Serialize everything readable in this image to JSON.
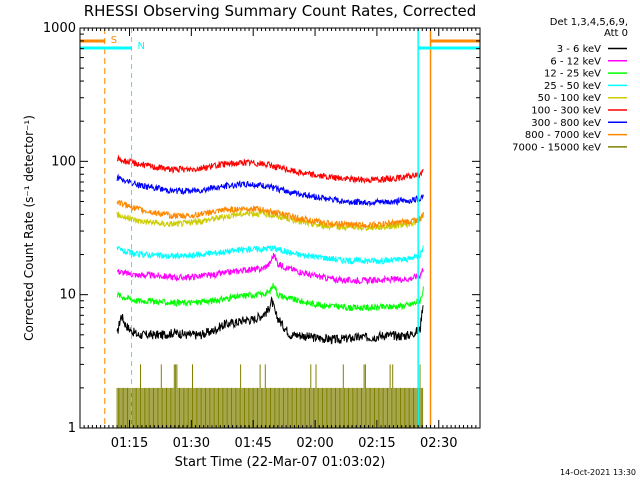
{
  "chart_data": {
    "type": "line",
    "title": "RHESSI Observing Summary Count Rates, Corrected",
    "xlabel": "Start Time (22-Mar-07 01:03:02)",
    "ylabel": "Corrected Count Rate (s⁻¹ detector⁻¹)",
    "yscale": "log",
    "ylim": [
      1,
      1000
    ],
    "xlim_minutes": [
      0,
      97
    ],
    "x_ticks": [
      {
        "label": "01:15",
        "minute": 12
      },
      {
        "label": "01:30",
        "minute": 27
      },
      {
        "label": "01:45",
        "minute": 42
      },
      {
        "label": "02:00",
        "minute": 57
      },
      {
        "label": "02:15",
        "minute": 72
      },
      {
        "label": "02:30",
        "minute": 87
      }
    ],
    "y_ticks": [
      {
        "label": "1",
        "value": 1
      },
      {
        "label": "10",
        "value": 10
      },
      {
        "label": "100",
        "value": 100
      },
      {
        "label": "1000",
        "value": 1000
      }
    ],
    "legend_header": [
      "Det 1,3,4,5,6,9,",
      "Att 0"
    ],
    "series": [
      {
        "name": "3 - 6 keV",
        "color": "#000000",
        "x": [
          9,
          10,
          11,
          12,
          14,
          17,
          20,
          23,
          26,
          29,
          32,
          35,
          38,
          40,
          42,
          44,
          45.5,
          46.5,
          47.5,
          49,
          51,
          53,
          56,
          59,
          62,
          65,
          68,
          71,
          74,
          77,
          80,
          82.5,
          83.3
        ],
        "y": [
          5,
          7,
          6,
          5.5,
          5,
          5,
          5,
          5.2,
          5,
          5,
          5.3,
          6,
          6.2,
          6.5,
          6.5,
          7,
          7.5,
          9,
          7,
          6,
          5,
          5,
          4.8,
          4.7,
          4.6,
          4.7,
          4.8,
          4.8,
          5,
          4.9,
          5,
          5.5,
          9
        ]
      },
      {
        "name": "6 - 12 keV",
        "color": "#ff00ff",
        "x": [
          9,
          11,
          14,
          17,
          20,
          23,
          26,
          29,
          32,
          35,
          38,
          41,
          44,
          46,
          47,
          48,
          50,
          53,
          56,
          59,
          62,
          65,
          68,
          71,
          74,
          77,
          80,
          82.5,
          83.3
        ],
        "y": [
          15,
          14.5,
          14,
          14,
          13.8,
          13.5,
          13.5,
          13.8,
          14,
          14.5,
          15,
          15.5,
          15.5,
          17,
          20,
          17,
          16,
          15,
          14,
          13.5,
          13,
          12.8,
          12.8,
          12.8,
          13,
          13,
          13.2,
          14,
          16
        ]
      },
      {
        "name": "12 - 25 keV",
        "color": "#00ff00",
        "x": [
          9,
          11,
          14,
          17,
          20,
          23,
          26,
          29,
          32,
          35,
          38,
          41,
          44,
          46,
          47,
          48,
          50,
          53,
          56,
          59,
          62,
          65,
          68,
          71,
          74,
          77,
          80,
          82.5,
          83.3
        ],
        "y": [
          10,
          9.5,
          9,
          9,
          8.8,
          8.7,
          8.7,
          8.8,
          9,
          9.3,
          9.6,
          10,
          10,
          10.5,
          12,
          10,
          9.5,
          9,
          8.6,
          8.3,
          8.2,
          8,
          8,
          8,
          8.1,
          8.2,
          8.4,
          9,
          11
        ]
      },
      {
        "name": "25 - 50 keV",
        "color": "#00ffff",
        "x": [
          9,
          11,
          14,
          17,
          20,
          23,
          26,
          29,
          32,
          35,
          38,
          41,
          44,
          46,
          48,
          50,
          53,
          56,
          59,
          62,
          65,
          68,
          71,
          74,
          77,
          80,
          82.5,
          83.3
        ],
        "y": [
          22,
          21,
          20,
          20,
          19.5,
          19.5,
          19.5,
          20,
          20.5,
          21,
          21.5,
          22,
          22,
          22.5,
          22,
          21,
          20,
          19.5,
          19,
          18.5,
          18,
          18,
          18,
          18,
          18.3,
          18.5,
          20,
          23
        ]
      },
      {
        "name": "50 - 100 keV",
        "color": "#cccc00",
        "x": [
          9,
          11,
          14,
          17,
          20,
          23,
          26,
          29,
          32,
          35,
          38,
          41,
          44,
          47,
          50,
          53,
          56,
          59,
          62,
          65,
          68,
          71,
          74,
          77,
          80,
          82.5,
          83.3
        ],
        "y": [
          40,
          38,
          36,
          35,
          34,
          34,
          34.5,
          35.5,
          37,
          38.5,
          40,
          41,
          40.5,
          39.5,
          37.5,
          35.5,
          34,
          33,
          32.5,
          32,
          32,
          32,
          32.5,
          33,
          34,
          36,
          40
        ]
      },
      {
        "name": "100 - 300 keV",
        "color": "#ff0000",
        "x": [
          9,
          11,
          14,
          17,
          20,
          23,
          26,
          29,
          32,
          35,
          38,
          41,
          44,
          47,
          50,
          53,
          56,
          59,
          62,
          65,
          68,
          71,
          74,
          77,
          80,
          82.5,
          83.3
        ],
        "y": [
          105,
          100,
          96,
          92,
          89,
          87,
          87,
          89,
          92,
          95,
          97,
          98,
          96,
          92,
          87,
          83,
          80,
          77,
          75,
          74,
          73,
          73,
          74,
          75,
          77,
          80,
          85
        ]
      },
      {
        "name": "300 - 800 keV",
        "color": "#0000ff",
        "x": [
          9,
          11,
          14,
          17,
          20,
          23,
          26,
          29,
          32,
          35,
          38,
          41,
          44,
          47,
          50,
          53,
          56,
          59,
          62,
          65,
          68,
          71,
          74,
          77,
          80,
          82.5,
          83.3
        ],
        "y": [
          75,
          71,
          67,
          64,
          62,
          60,
          60,
          61,
          63,
          65,
          67,
          67.5,
          66,
          63,
          60,
          57,
          55,
          53,
          51,
          50,
          49.5,
          49.5,
          49.5,
          50,
          51,
          53,
          56
        ]
      },
      {
        "name": "800 - 7000 keV",
        "color": "#ff8800",
        "x": [
          9,
          11,
          14,
          17,
          20,
          23,
          26,
          29,
          32,
          35,
          38,
          41,
          44,
          47,
          50,
          53,
          56,
          59,
          62,
          65,
          68,
          71,
          74,
          77,
          80,
          82.5,
          83.3
        ],
        "y": [
          50,
          47,
          44,
          42,
          40,
          39,
          39,
          40,
          41.5,
          43,
          44,
          44.5,
          43.5,
          41.5,
          39.5,
          37.5,
          36,
          34.5,
          34,
          33.5,
          33.5,
          33.5,
          34,
          34.5,
          35.5,
          37,
          40
        ]
      },
      {
        "name": "7000 - 15000 keV",
        "color": "#808000",
        "x": [
          9,
          83.3
        ],
        "y": [
          2,
          2
        ]
      }
    ],
    "markers": [
      {
        "label": "S",
        "color": "#ff8800",
        "minute_start": 6,
        "minute_end": 85
      },
      {
        "label": "N",
        "color": "#00ffff",
        "minute_start": 12.5,
        "minute_end": 82
      }
    ],
    "legend_position": "top-right outside plot",
    "timestamp": "14-Oct-2021 13:30"
  }
}
